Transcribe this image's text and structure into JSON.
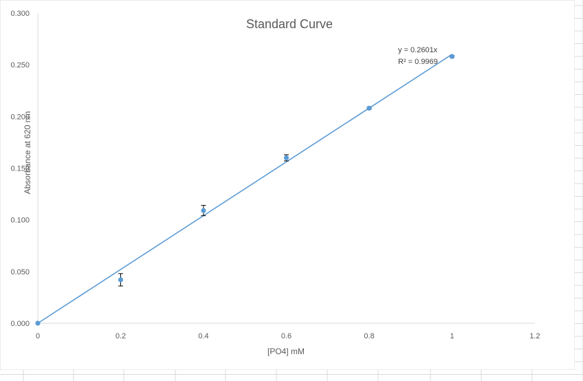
{
  "chart_data": {
    "type": "scatter",
    "title": "Standard Curve",
    "xlabel": "[PO4] mM",
    "ylabel": "Absorbance at 620 nm",
    "xlim": [
      0,
      1.2
    ],
    "ylim": [
      0,
      0.3
    ],
    "x_ticks": [
      "0",
      "0.2",
      "0.4",
      "0.6",
      "0.8",
      "1",
      "1.2"
    ],
    "y_ticks": [
      "0.000",
      "0.050",
      "0.100",
      "0.150",
      "0.200",
      "0.250",
      "0.300"
    ],
    "grid": false,
    "series": [
      {
        "points": [
          {
            "x": 0,
            "y": 0.0,
            "err": 0
          },
          {
            "x": 0.2,
            "y": 0.042,
            "err": 0.006
          },
          {
            "x": 0.4,
            "y": 0.109,
            "err": 0.005
          },
          {
            "x": 0.6,
            "y": 0.16,
            "err": 0.003
          },
          {
            "x": 0.8,
            "y": 0.208,
            "err": 0.001
          },
          {
            "x": 1.0,
            "y": 0.258,
            "err": 0.001
          }
        ]
      }
    ],
    "trendline": {
      "slope": 0.2601,
      "x_range": [
        0,
        1.0
      ],
      "equation": "y = 0.2601x",
      "r_squared": "R² = 0.9969"
    },
    "colors": {
      "series": "#5b9bd5",
      "trendline": "#5b9bd5",
      "axis": "#d9d9d9",
      "error_bar": "#000000"
    }
  }
}
